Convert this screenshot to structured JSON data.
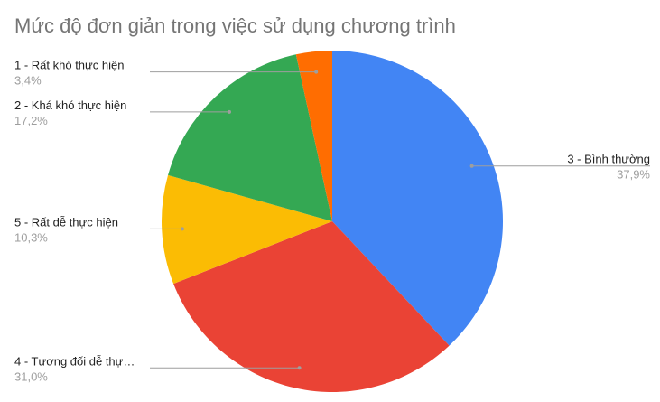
{
  "chart_data": {
    "type": "pie",
    "title": "Mức độ đơn giản trong việc sử dụng chương trình",
    "slices": [
      {
        "label": "3 - Bình thường",
        "value": 37.9,
        "value_label": "37,9%",
        "color": "#4285f4"
      },
      {
        "label": "4 - Tương đối dễ thự…",
        "value": 31.0,
        "value_label": "31,0%",
        "color": "#ea4335"
      },
      {
        "label": "5 - Rất dễ thực hiện",
        "value": 10.3,
        "value_label": "10,3%",
        "color": "#fbbc04"
      },
      {
        "label": "2 - Khá khó thực hiện",
        "value": 17.2,
        "value_label": "17,2%",
        "color": "#34a853"
      },
      {
        "label": "1 - Rất khó thực hiện",
        "value": 3.4,
        "value_label": "3,4%",
        "color": "#ff6d01"
      }
    ],
    "start_angle_deg": 0,
    "direction": "clockwise"
  }
}
